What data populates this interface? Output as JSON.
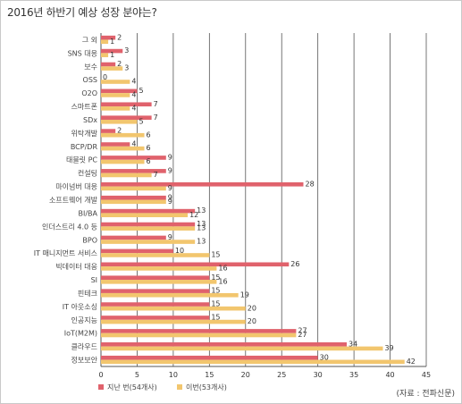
{
  "title": "2016년 하반기 예상 성장 분야는?",
  "source": "(자료 : 전파신문)",
  "chart_data": {
    "type": "bar",
    "orientation": "horizontal",
    "categories": [
      "그 외",
      "SNS 대응",
      "보수",
      "OSS",
      "O2O",
      "스마트폰",
      "SDx",
      "위탁개발",
      "BCP/DR",
      "태블릿 PC",
      "컨설팅",
      "마이넘버 대응",
      "소프트웨어 개발",
      "BI/BA",
      "인더스트리 4.0 등",
      "BPO",
      "IT 매니지먼트 서비스",
      "빅데이터 대응",
      "SI",
      "핀테크",
      "IT 아웃소싱",
      "인공지능",
      "IoT(M2M)",
      "클라우드",
      "정보보안"
    ],
    "series": [
      {
        "name": "지난 번(54개사)",
        "color": "#e0626c",
        "values": [
          2,
          3,
          2,
          0,
          5,
          7,
          7,
          2,
          4,
          9,
          9,
          28,
          9,
          13,
          13,
          9,
          10,
          26,
          15,
          15,
          15,
          15,
          27,
          34,
          30
        ]
      },
      {
        "name": "이번(53개사)",
        "color": "#f2c66e",
        "values": [
          1,
          1,
          3,
          4,
          4,
          4,
          5,
          6,
          6,
          6,
          7,
          9,
          9,
          12,
          13,
          13,
          15,
          16,
          16,
          19,
          20,
          20,
          27,
          39,
          42
        ]
      }
    ],
    "xlim": [
      0,
      45
    ],
    "xticks": [
      0,
      5,
      10,
      15,
      20,
      25,
      30,
      35,
      40,
      45
    ],
    "grid": "vertical",
    "legend_position": "bottom-left"
  }
}
